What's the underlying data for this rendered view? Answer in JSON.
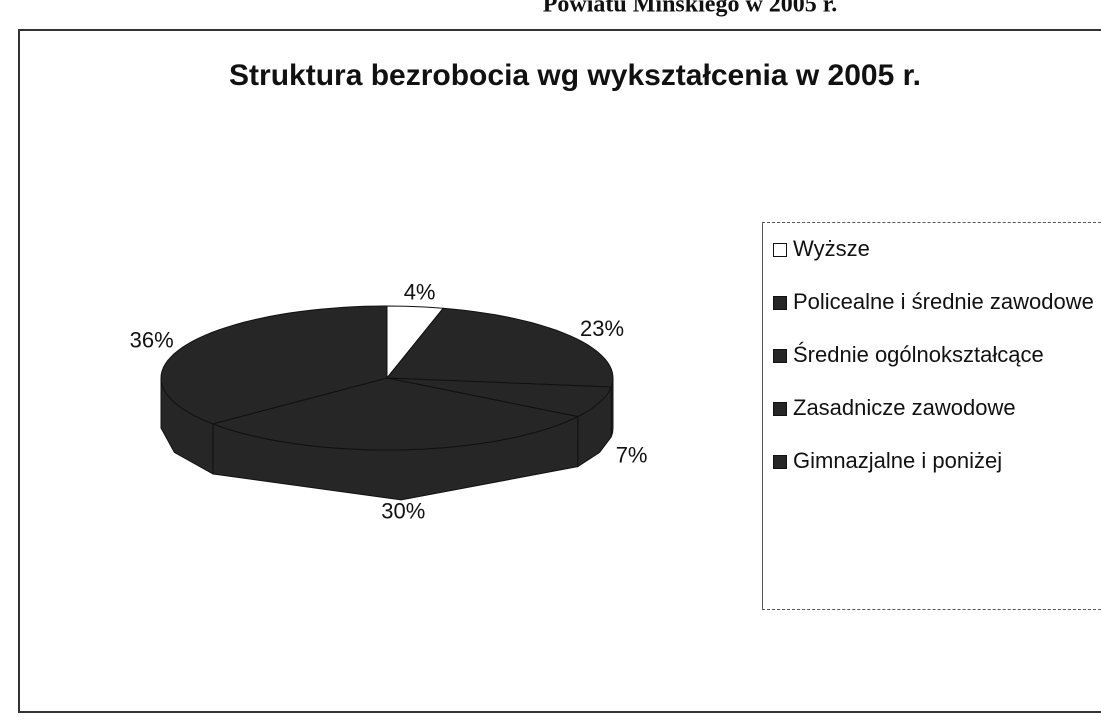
{
  "header": "Powiatu Mińskiego w 2005 r.",
  "chart_data": {
    "type": "pie3d",
    "title": "Struktura bezrobocia wg wykształcenia w 2005 r.",
    "categories": [
      "Wyższe",
      "Policealne i średnie zawodowe",
      "Średnie ogólnokształcące",
      "Zasadnicze zawodowe",
      "Gimnazjalne i poniżej"
    ],
    "values": [
      4,
      23,
      7,
      30,
      36
    ],
    "value_labels": [
      "4%",
      "23%",
      "7%",
      "30%",
      "36%"
    ],
    "colors": [
      "#ffffff",
      "#262626",
      "#262626",
      "#262626",
      "#262626"
    ],
    "legend": "right"
  }
}
